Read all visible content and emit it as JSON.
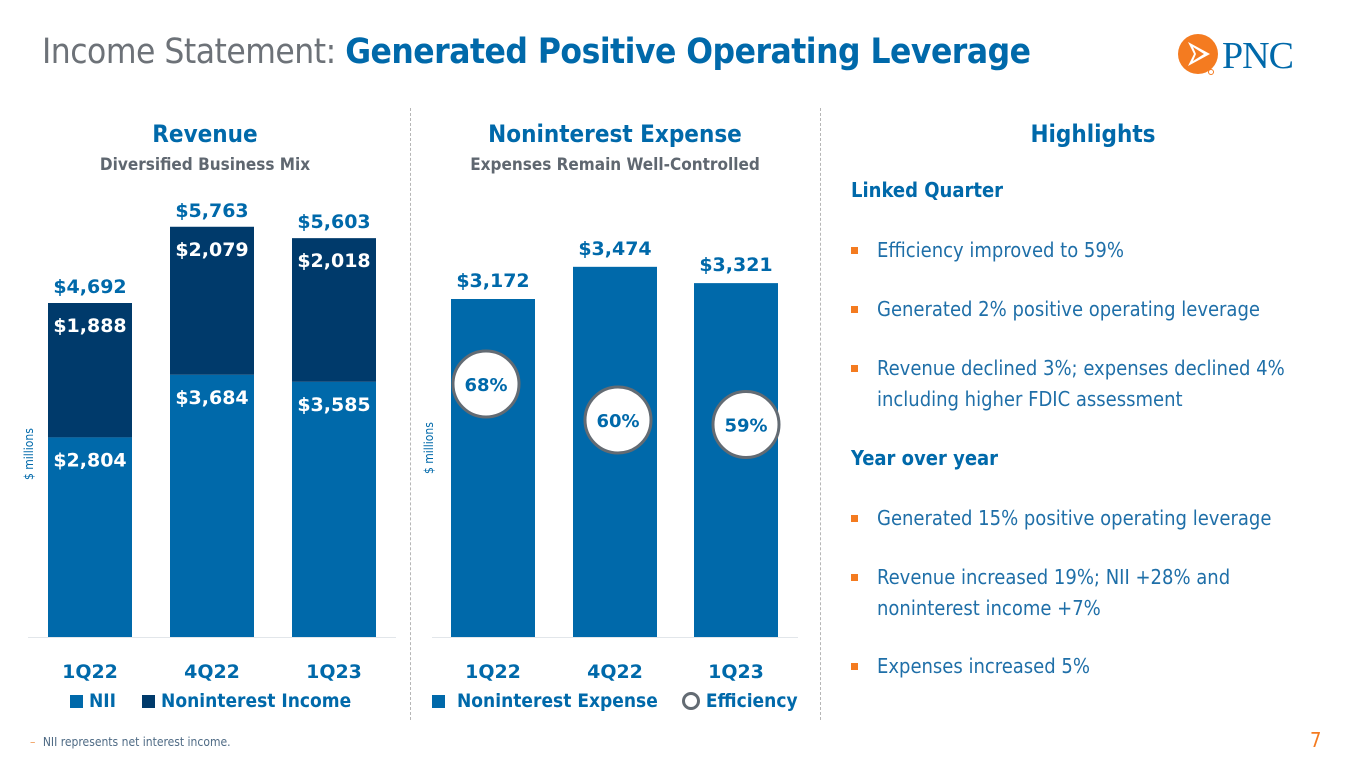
{
  "header": {
    "title_prefix": "Income Statement:",
    "title_main": "Generated Positive Operating Leverage",
    "logo_text": "PNC",
    "logo_icon": "pnc-triangle-icon"
  },
  "colors": {
    "brand_blue": "#0069aa",
    "dark_navy": "#003a6b",
    "orange": "#f47b20",
    "gray_text": "#5f6770",
    "efficiency_ring": "#636b73"
  },
  "chart_data": [
    {
      "type": "bar",
      "stacked": true,
      "title": "Revenue",
      "subtitle": "Diversified Business Mix",
      "ylabel": "$ millions",
      "xlabel": "",
      "categories": [
        "1Q22",
        "4Q22",
        "1Q23"
      ],
      "series": [
        {
          "name": "NII",
          "color": "#0069aa",
          "values": [
            2804,
            3684,
            3585
          ],
          "labels": [
            "$2,804",
            "$3,684",
            "$3,585"
          ]
        },
        {
          "name": "Noninterest Income",
          "color": "#003a6b",
          "values": [
            1888,
            2079,
            2018
          ],
          "labels": [
            "$1,888",
            "$2,079",
            "$2,018"
          ]
        }
      ],
      "totals": [
        4692,
        5763,
        5603
      ],
      "total_labels": [
        "$4,692",
        "$5,763",
        "$5,603"
      ],
      "ylim": [
        0,
        6600
      ],
      "grid": false,
      "legend": "bottom",
      "legend_entries": [
        "NII",
        "Noninterest Income"
      ]
    },
    {
      "type": "bar",
      "title": "Noninterest Expense",
      "subtitle": "Expenses Remain Well-Controlled",
      "ylabel": "$ millions",
      "xlabel": "",
      "categories": [
        "1Q22",
        "4Q22",
        "1Q23"
      ],
      "series": [
        {
          "name": "Noninterest Expense",
          "color": "#0069aa",
          "values": [
            3172,
            3474,
            3321
          ],
          "labels": [
            "$3,172",
            "$3,474",
            "$3,321"
          ]
        }
      ],
      "efficiency": {
        "name": "Efficiency",
        "values": [
          68,
          60,
          59
        ],
        "labels": [
          "68%",
          "60%",
          "59%"
        ]
      },
      "ylim": [
        0,
        4000
      ],
      "grid": false,
      "legend": "bottom",
      "legend_entries": [
        "Noninterest Expense",
        "Efficiency"
      ]
    }
  ],
  "highlights": {
    "title": "Highlights",
    "sections": [
      {
        "heading": "Linked Quarter",
        "items": [
          "Efficiency improved to 59%",
          "Generated 2% positive operating leverage",
          "Revenue declined 3%; expenses declined 4% including higher FDIC assessment"
        ]
      },
      {
        "heading": "Year over year",
        "items": [
          "Generated 15% positive operating leverage",
          "Revenue increased 19%; NII +28% and noninterest income +7%",
          "Expenses increased 5%"
        ]
      }
    ]
  },
  "footnote": {
    "dash": "–",
    "text": "NII represents net interest income."
  },
  "page_number": "7"
}
